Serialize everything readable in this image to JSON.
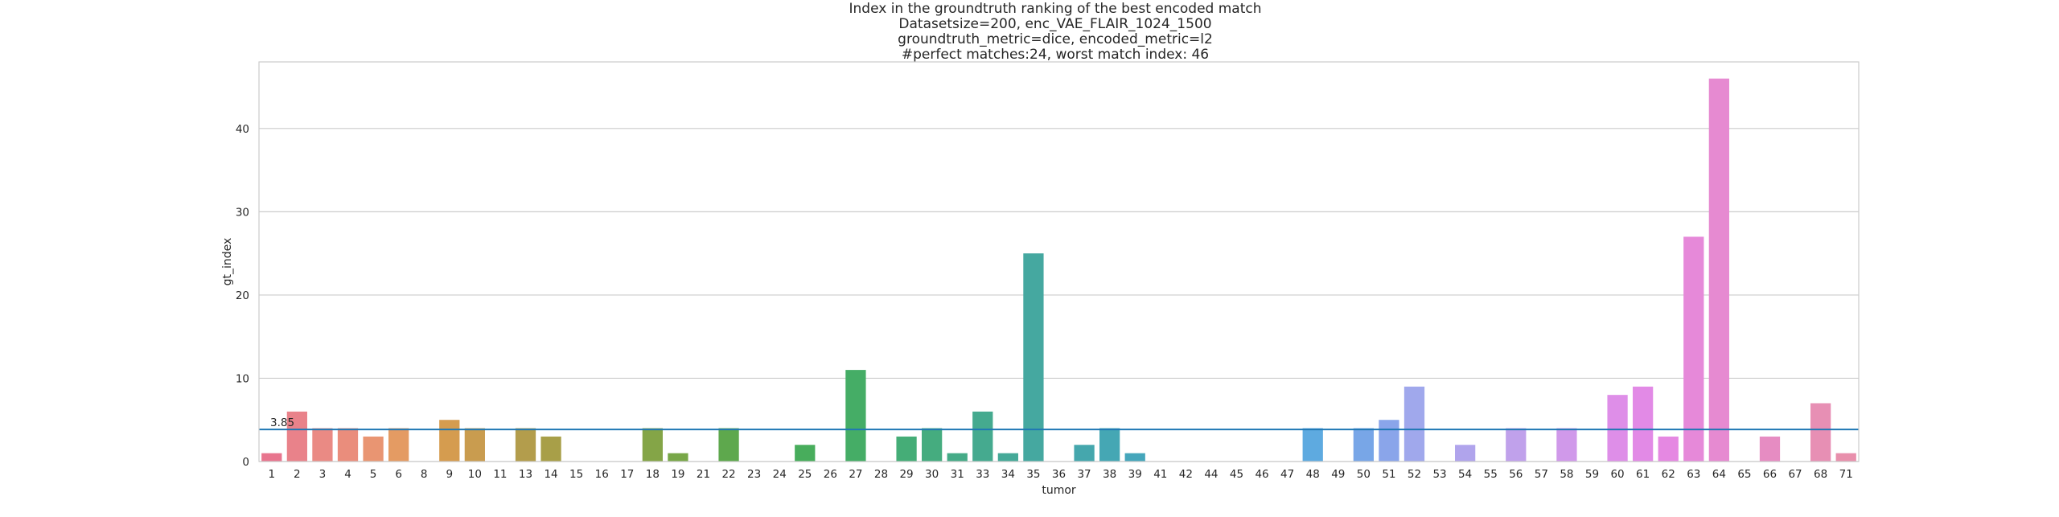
{
  "chart_data": {
    "type": "bar",
    "title_lines": [
      "Index in the groundtruth ranking of the best encoded match",
      "Datasetsize=200, enc_VAE_FLAIR_1024_1500",
      "groundtruth_metric=dice, encoded_metric=l2",
      "#perfect matches:24, worst match index: 46"
    ],
    "xlabel": "tumor",
    "ylabel": "gt_index",
    "ylim": [
      0,
      48
    ],
    "yticks": [
      0,
      10,
      20,
      30,
      40
    ],
    "grid": true,
    "reference_line": {
      "value": 3.85,
      "label": "3.85",
      "color": "#1f77b4"
    },
    "categories": [
      "1",
      "2",
      "3",
      "4",
      "5",
      "6",
      "8",
      "9",
      "10",
      "11",
      "13",
      "14",
      "15",
      "16",
      "17",
      "18",
      "19",
      "21",
      "22",
      "23",
      "24",
      "25",
      "26",
      "27",
      "28",
      "29",
      "30",
      "31",
      "33",
      "34",
      "35",
      "36",
      "37",
      "38",
      "39",
      "41",
      "42",
      "44",
      "45",
      "46",
      "47",
      "48",
      "49",
      "50",
      "51",
      "52",
      "53",
      "54",
      "55",
      "56",
      "57",
      "58",
      "59",
      "60",
      "61",
      "62",
      "63",
      "64",
      "65",
      "66",
      "67",
      "68",
      "71"
    ],
    "values": [
      1,
      6,
      4,
      4,
      3,
      4,
      0,
      5,
      4,
      0,
      4,
      3,
      0,
      0,
      0,
      4,
      1,
      0,
      4,
      0,
      0,
      2,
      0,
      11,
      0,
      3,
      4,
      1,
      6,
      1,
      25,
      0,
      2,
      4,
      1,
      0,
      0,
      0,
      0,
      0,
      0,
      4,
      0,
      4,
      5,
      9,
      0,
      2,
      0,
      4,
      0,
      4,
      0,
      8,
      9,
      3,
      27,
      46,
      0,
      3,
      0,
      7,
      1
    ],
    "colors": [
      "#e8758e",
      "#e9828a",
      "#ea8a84",
      "#ea8d7c",
      "#e99572",
      "#e49b63",
      "#dd9c55",
      "#d59c4f",
      "#c99c4f",
      "#bf9c4c",
      "#b39d4c",
      "#a89f48",
      "#9fa046",
      "#98a145",
      "#8fa346",
      "#84a547",
      "#78a748",
      "#6ba84b",
      "#5ea84d",
      "#55aa4f",
      "#4eac56",
      "#48ad5c",
      "#46ad60",
      "#45ad66",
      "#45ad6f",
      "#45ad77",
      "#45ac7f",
      "#45ab87",
      "#45aa8f",
      "#45a998",
      "#45a8a0",
      "#45a8a6",
      "#45a7ad",
      "#45a7b4",
      "#45a6bb",
      "#46a6c2",
      "#48a6c9",
      "#4ba6d1",
      "#4fa6d7",
      "#55a7dd",
      "#5ba8df",
      "#5eaae0",
      "#68a8e3",
      "#78a6e7",
      "#8aa5ea",
      "#a0a8ec",
      "#a9a6ec",
      "#b0a4ec",
      "#b8a3ec",
      "#c0a1eb",
      "#c89feb",
      "#d099ea",
      "#d894e9",
      "#de8ee8",
      "#e28ae6",
      "#e588e2",
      "#e689d9",
      "#e68ad1",
      "#e68bca",
      "#e68cc2",
      "#e68ebb",
      "#e78fb4",
      "#e88fac"
    ]
  }
}
